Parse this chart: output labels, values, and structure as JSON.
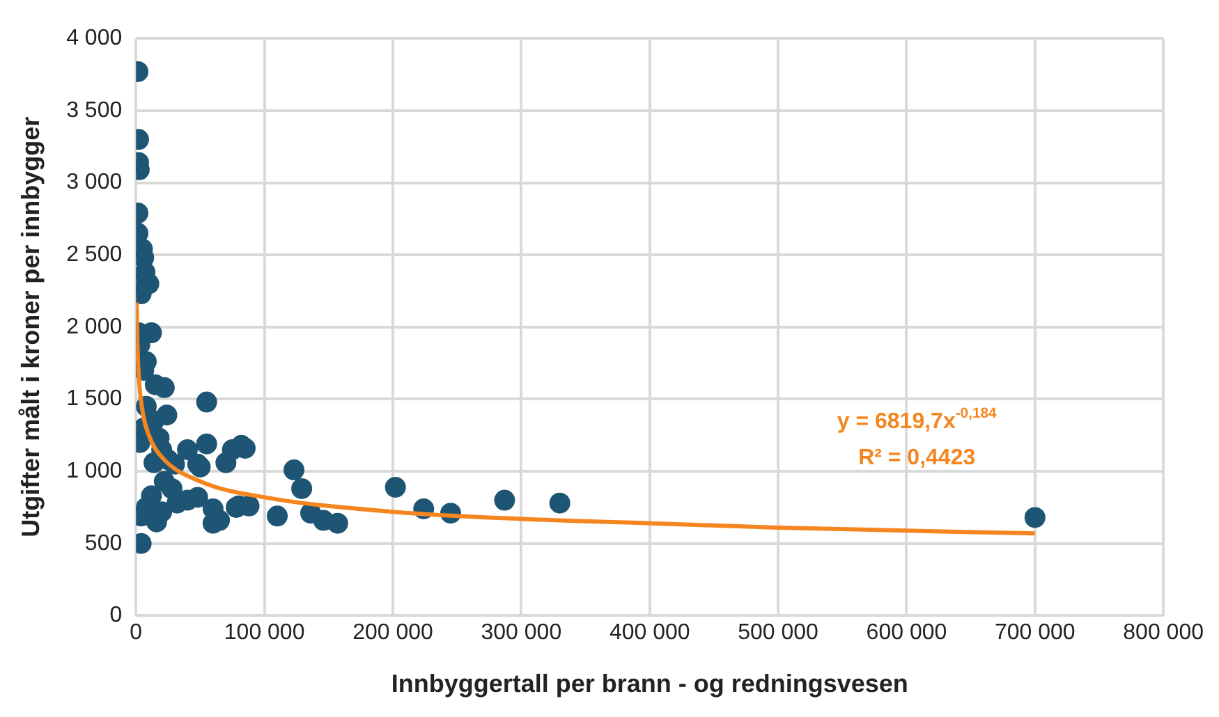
{
  "chart_data": {
    "type": "scatter",
    "xlabel": "Innbyggertall per brann - og redningsvesen",
    "ylabel": "Utgifter målt i kroner per innbygger",
    "grid": true,
    "legend": false,
    "marker": "circle",
    "xlim": [
      0,
      800000
    ],
    "xticks": [
      0,
      {
        "value": 100000,
        "label": "100 000"
      },
      {
        "value": 200000,
        "label": "200 000"
      },
      {
        "value": 300000,
        "label": "300 000"
      },
      {
        "value": 400000,
        "label": "400 000"
      },
      {
        "value": 500000,
        "label": "500 000"
      },
      {
        "value": 600000,
        "label": "600 000"
      },
      {
        "value": 700000,
        "label": "700 000"
      },
      {
        "value": 800000,
        "label": "800 000"
      }
    ],
    "ylim": [
      0,
      4000
    ],
    "yticks": [
      0,
      500,
      {
        "value": 1000,
        "label": "1 000"
      },
      {
        "value": 1500,
        "label": "1 500"
      },
      {
        "value": 2000,
        "label": "2 000"
      },
      {
        "value": 2500,
        "label": "2 500"
      },
      {
        "value": 3000,
        "label": "3 000"
      },
      {
        "value": 3500,
        "label": "3 500"
      },
      {
        "value": 4000,
        "label": "4 000"
      }
    ],
    "annotations": [
      "y = 6819,7x$^{-0,184}$",
      "R² = 0,4423"
    ],
    "series": [
      {
        "type": "scatter",
        "color": "#1f5574",
        "x": [
          1500,
          2000,
          2000,
          2500,
          1500,
          1500,
          5000,
          6000,
          7000,
          10000,
          3000,
          4000,
          2000,
          12000,
          3000,
          6000,
          8000,
          8000,
          15000,
          22000,
          14000,
          24000,
          6000,
          18000,
          3000,
          20000,
          14000,
          25000,
          30000,
          40000,
          22000,
          28000,
          12000,
          32000,
          40000,
          48000,
          8000,
          20000,
          4000,
          16000,
          4000,
          55000,
          55000,
          48000,
          50000,
          60000,
          65000,
          60000,
          70000,
          75000,
          85000,
          82000,
          80000,
          78000,
          88000,
          110000,
          123000,
          129000,
          136000,
          146000,
          157000,
          202000,
          224000,
          245000,
          287000,
          330000,
          700000
        ],
        "values": [
          3770,
          3300,
          3140,
          3090,
          2790,
          2650,
          2540,
          2480,
          2380,
          2300,
          2300,
          2230,
          1960,
          1960,
          1880,
          1700,
          1760,
          1450,
          1600,
          1580,
          1350,
          1390,
          1300,
          1230,
          1200,
          1150,
          1060,
          1080,
          1050,
          1150,
          930,
          880,
          830,
          780,
          800,
          820,
          750,
          720,
          690,
          650,
          500,
          1480,
          1190,
          1050,
          1030,
          740,
          660,
          640,
          1060,
          1150,
          1160,
          1180,
          760,
          750,
          760,
          690,
          1010,
          880,
          710,
          660,
          640,
          890,
          740,
          710,
          800,
          780,
          680
        ]
      },
      {
        "type": "line",
        "color": "#f5861f",
        "marker": "none",
        "x": [
          500,
          1000,
          2000,
          5000,
          10000,
          20000,
          50000,
          100000,
          200000,
          300000,
          400000,
          500000,
          700000
        ],
        "values": [
          2170,
          1910,
          1680,
          1420,
          1250,
          1100,
          930,
          820,
          720,
          670,
          640,
          610,
          570
        ]
      }
    ]
  }
}
